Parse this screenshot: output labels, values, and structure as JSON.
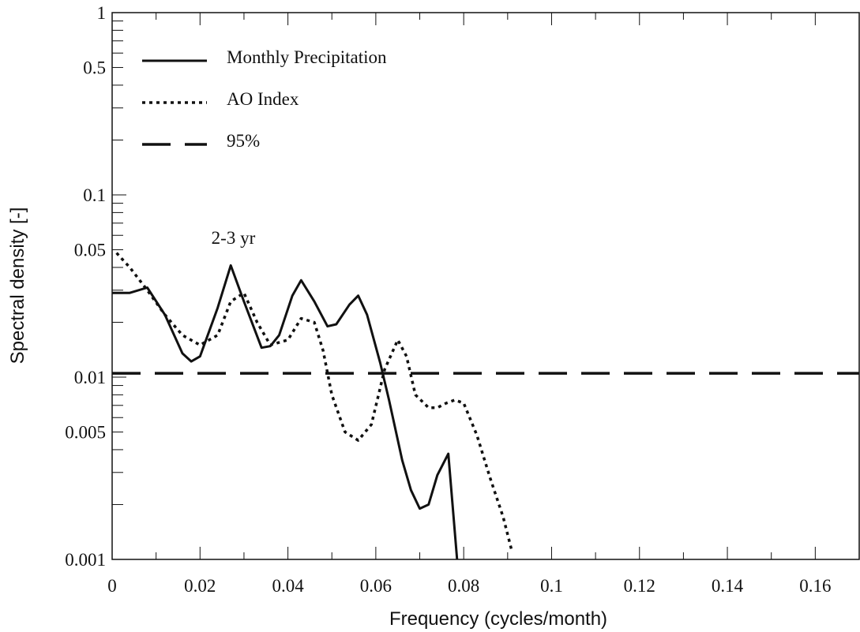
{
  "chart_data": {
    "type": "line",
    "title": "",
    "xlabel": "Frequency (cycles/month)",
    "ylabel": "Spectral density [-]",
    "xlim": [
      0,
      0.17
    ],
    "ylim": [
      0.001,
      1
    ],
    "yscale": "log",
    "grid": false,
    "legend_position": "top-left",
    "x_ticks": [
      0,
      0.02,
      0.04,
      0.06,
      0.08,
      0.1,
      0.12,
      0.14,
      0.16
    ],
    "x_tick_labels": [
      "0",
      "0.02",
      "0.04",
      "0.06",
      "0.08",
      "0.1",
      "0.12",
      "0.14",
      "0.16"
    ],
    "y_ticks": [
      0.001,
      0.005,
      0.01,
      0.05,
      0.1,
      0.5,
      1
    ],
    "y_tick_labels": [
      "0.001",
      "0.005",
      "0.01",
      "0.05",
      "0.1",
      "0.5",
      "1"
    ],
    "annotations": [
      {
        "text": "2-3 yr",
        "x": 0.0265,
        "y": 0.055
      }
    ],
    "series": [
      {
        "name": "Monthly Precipitation",
        "style": "solid",
        "x": [
          0,
          0.004,
          0.008,
          0.012,
          0.016,
          0.018,
          0.02,
          0.024,
          0.027,
          0.03,
          0.034,
          0.036,
          0.038,
          0.041,
          0.043,
          0.046,
          0.049,
          0.051,
          0.054,
          0.056,
          0.058,
          0.061,
          0.063,
          0.066,
          0.068,
          0.07,
          0.072,
          0.074,
          0.0765,
          0.0785
        ],
        "y": [
          0.029,
          0.029,
          0.031,
          0.022,
          0.0135,
          0.0122,
          0.013,
          0.024,
          0.041,
          0.026,
          0.0145,
          0.0148,
          0.017,
          0.028,
          0.034,
          0.026,
          0.019,
          0.0195,
          0.025,
          0.028,
          0.022,
          0.012,
          0.0075,
          0.0035,
          0.0024,
          0.0019,
          0.002,
          0.0029,
          0.0038,
          0.001
        ]
      },
      {
        "name": "AO Index",
        "style": "dotted",
        "x": [
          0.001,
          0.004,
          0.008,
          0.012,
          0.016,
          0.02,
          0.024,
          0.027,
          0.03,
          0.033,
          0.036,
          0.04,
          0.043,
          0.046,
          0.048,
          0.05,
          0.053,
          0.056,
          0.059,
          0.062,
          0.065,
          0.067,
          0.069,
          0.072,
          0.074,
          0.076,
          0.078,
          0.08,
          0.083,
          0.086,
          0.089,
          0.091
        ],
        "y": [
          0.048,
          0.04,
          0.03,
          0.022,
          0.017,
          0.015,
          0.017,
          0.026,
          0.029,
          0.02,
          0.015,
          0.016,
          0.021,
          0.02,
          0.014,
          0.008,
          0.005,
          0.0045,
          0.0055,
          0.011,
          0.016,
          0.013,
          0.008,
          0.0068,
          0.0068,
          0.0072,
          0.0075,
          0.0072,
          0.0048,
          0.0028,
          0.0017,
          0.0011
        ]
      },
      {
        "name": "95%",
        "style": "dashed",
        "x": [
          0,
          0.17
        ],
        "y": [
          0.0105,
          0.0105
        ]
      }
    ]
  }
}
